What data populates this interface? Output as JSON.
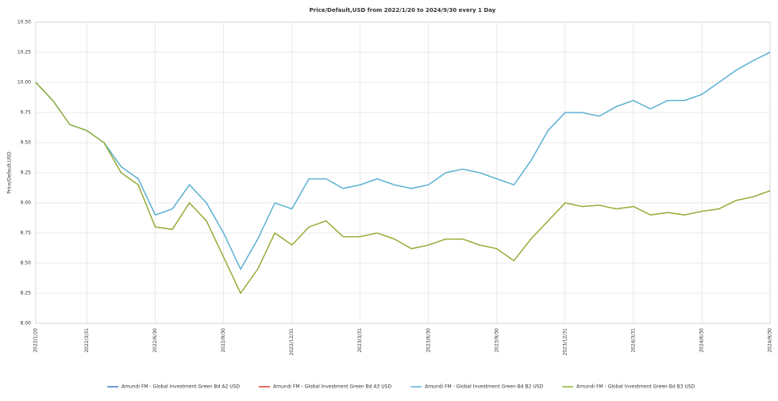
{
  "chart_data": {
    "type": "line",
    "title": "Price/Default,USD from 2022/1/20 to 2024/9/30 every 1 Day",
    "y_label": "Price/Default,USD",
    "categories": [
      "2022/1/20",
      null,
      null,
      "2022/3/31",
      null,
      null,
      null,
      "2022/6/30",
      null,
      null,
      null,
      "2022/9/30",
      null,
      null,
      null,
      "2022/12/31",
      null,
      null,
      null,
      "2023/3/31",
      null,
      null,
      null,
      "2023/6/30",
      null,
      null,
      null,
      "2023/9/30",
      null,
      null,
      null,
      "2023/12/31",
      null,
      null,
      null,
      "2024/3/31",
      null,
      null,
      null,
      "2024/6/30",
      null,
      null,
      null,
      "2024/9/30"
    ],
    "ylim": [
      8,
      10.5
    ],
    "yticks": [
      {
        "value": 8,
        "label": "8.00"
      },
      {
        "value": 8.25,
        "label": "8.25"
      },
      {
        "value": 8.5,
        "label": "8.50"
      },
      {
        "value": 8.75,
        "label": "8.75"
      },
      {
        "value": 9,
        "label": "9.00"
      },
      {
        "value": 9.25,
        "label": "9.25"
      },
      {
        "value": 9.5,
        "label": "9.50"
      },
      {
        "value": 9.75,
        "label": "9.75"
      },
      {
        "value": 10,
        "label": "10.00"
      },
      {
        "value": 10.25,
        "label": "10.25"
      },
      {
        "value": 10.5,
        "label": "10.50"
      }
    ],
    "grid": true,
    "series": [
      {
        "name": "Amundi FM - Global Investment Green Bd A2 USD",
        "color": "#3c78c8",
        "values": [
          10.0,
          9.85,
          9.65,
          9.6,
          9.5,
          9.3,
          9.2,
          8.9,
          8.95,
          9.15,
          9.0,
          8.75,
          8.45,
          8.7,
          9.0,
          8.95,
          9.2,
          9.2,
          9.12,
          9.15,
          9.2,
          9.15,
          9.12,
          9.15,
          9.25,
          9.28,
          9.25,
          9.2,
          9.15,
          9.35,
          9.6,
          9.75,
          9.75,
          9.72,
          9.8,
          9.85,
          9.78,
          9.85,
          9.85,
          9.9,
          10.0,
          10.1,
          10.18,
          10.25
        ]
      },
      {
        "name": "Amundi FM - Global Investment Green Bd A3 USD",
        "color": "#e03c28",
        "values": [
          10.0,
          9.85,
          9.65,
          9.6,
          9.5,
          9.25,
          9.15,
          8.8,
          8.78,
          9.0,
          8.85,
          8.55,
          8.25,
          8.45,
          8.75,
          8.65,
          8.8,
          8.85,
          8.72,
          8.72,
          8.75,
          8.7,
          8.62,
          8.65,
          8.7,
          8.7,
          8.65,
          8.62,
          8.52,
          8.7,
          8.85,
          9.0,
          8.97,
          8.98,
          8.95,
          8.97,
          8.9,
          8.92,
          8.9,
          8.93,
          8.95,
          9.02,
          9.05,
          9.1
        ]
      },
      {
        "name": "Amundi FM - Global Investment Green Bd B2 USD",
        "color": "#5ab4d2",
        "values": [
          10.0,
          9.85,
          9.65,
          9.6,
          9.5,
          9.3,
          9.2,
          8.9,
          8.95,
          9.15,
          9.0,
          8.75,
          8.45,
          8.7,
          9.0,
          8.95,
          9.2,
          9.2,
          9.12,
          9.15,
          9.2,
          9.15,
          9.12,
          9.15,
          9.25,
          9.28,
          9.25,
          9.2,
          9.15,
          9.35,
          9.6,
          9.75,
          9.75,
          9.72,
          9.8,
          9.85,
          9.78,
          9.85,
          9.85,
          9.9,
          10.0,
          10.1,
          10.18,
          10.25
        ]
      },
      {
        "name": "Amundi FM - Global Investment Green Bd B3 USD",
        "color": "#8cb432",
        "values": [
          10.0,
          9.85,
          9.65,
          9.6,
          9.5,
          9.25,
          9.15,
          8.8,
          8.78,
          9.0,
          8.85,
          8.55,
          8.25,
          8.45,
          8.75,
          8.65,
          8.8,
          8.85,
          8.72,
          8.72,
          8.75,
          8.7,
          8.62,
          8.65,
          8.7,
          8.7,
          8.65,
          8.62,
          8.52,
          8.7,
          8.85,
          9.0,
          8.97,
          8.98,
          8.95,
          8.97,
          8.9,
          8.92,
          8.9,
          8.93,
          8.95,
          9.02,
          9.05,
          9.1
        ]
      }
    ]
  }
}
